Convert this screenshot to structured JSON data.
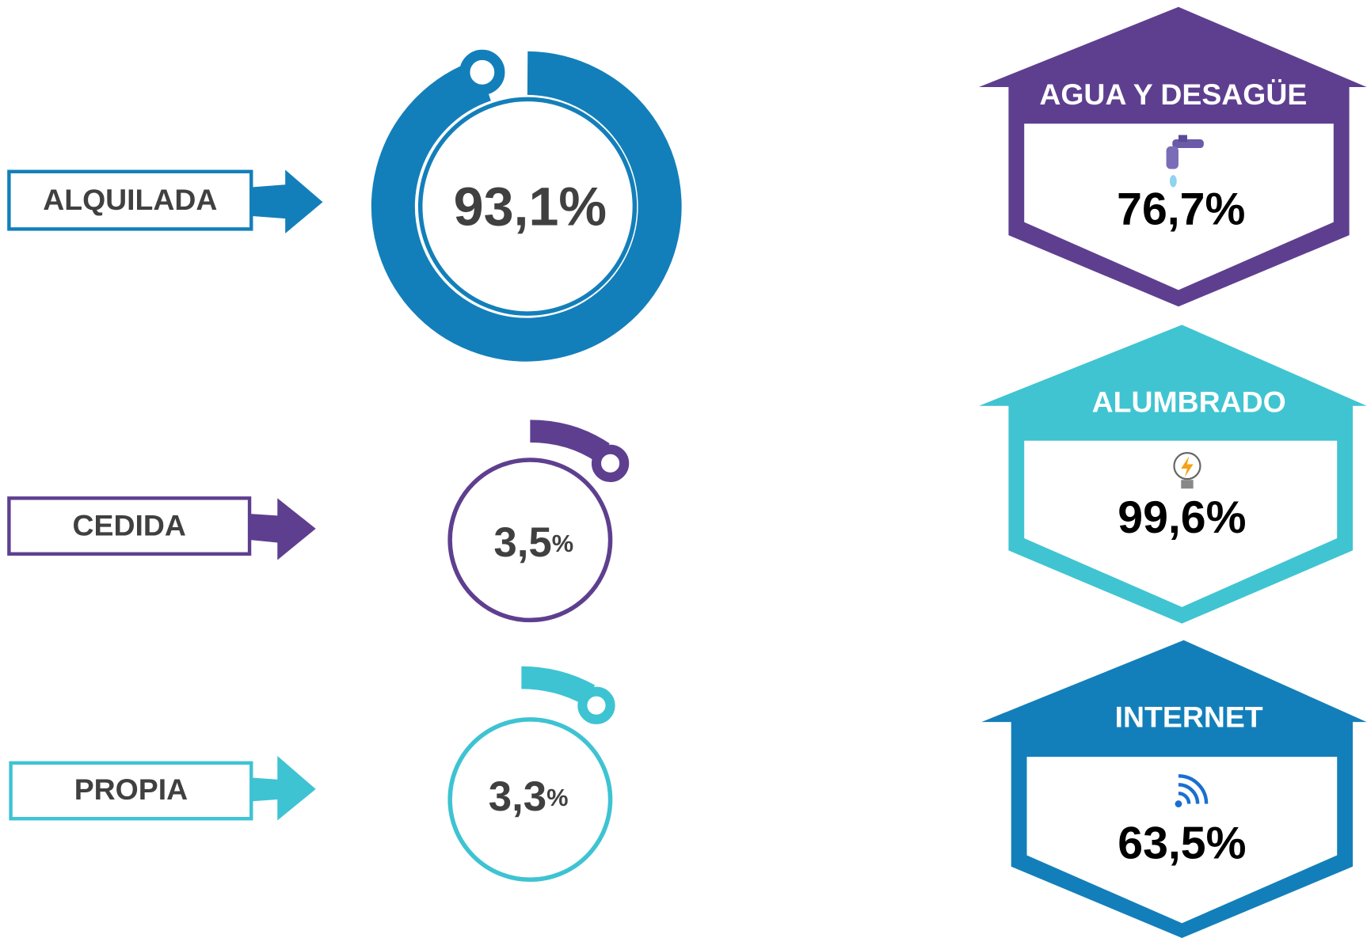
{
  "tenure": [
    {
      "label": "ALQUILADA",
      "number": "93,1",
      "unit": "%"
    },
    {
      "label": "CEDIDA",
      "number": "3,5",
      "unit": "%"
    },
    {
      "label": "PROPIA",
      "number": "3,3",
      "unit": "%"
    }
  ],
  "services": [
    {
      "title": "AGUA Y DESAGÜE",
      "value": "76,7%"
    },
    {
      "title": "ALUMBRADO",
      "value": "99,6%"
    },
    {
      "title": "INTERNET",
      "value": "63,5%"
    }
  ]
}
